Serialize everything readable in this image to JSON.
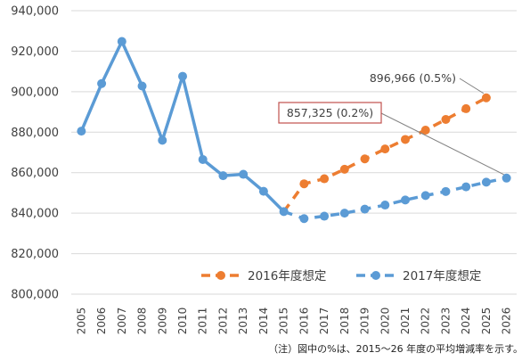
{
  "chart_data": {
    "type": "line",
    "x": [
      "2005",
      "2006",
      "2007",
      "2008",
      "2009",
      "2010",
      "2011",
      "2012",
      "2013",
      "2014",
      "2015",
      "2016",
      "2017",
      "2018",
      "2019",
      "2020",
      "2021",
      "2022",
      "2023",
      "2024",
      "2025",
      "2026"
    ],
    "ylim": [
      800000,
      940000
    ],
    "yticks": [
      800000,
      820000,
      840000,
      860000,
      880000,
      900000,
      920000,
      940000
    ],
    "ytick_labels": [
      "800,000",
      "820,000",
      "840,000",
      "860,000",
      "880,000",
      "900,000",
      "920,000",
      "940,000"
    ],
    "grid": true,
    "legend_position": "bottom-right",
    "series": [
      {
        "name": "2017年度想定",
        "color": "#5b9bd5",
        "values": [
          880500,
          904000,
          924800,
          902800,
          876000,
          907600,
          866500,
          858500,
          859200,
          850800,
          840800,
          837300,
          838500,
          840000,
          842000,
          844000,
          846500,
          848700,
          850700,
          853000,
          855300,
          857325
        ]
      },
      {
        "name": "2016年度想定",
        "color": "#ed7d31",
        "values": [
          null,
          null,
          null,
          null,
          null,
          null,
          null,
          null,
          null,
          null,
          840800,
          854500,
          857000,
          861700,
          866800,
          871700,
          876400,
          881000,
          886300,
          891600,
          896966,
          null
        ]
      }
    ],
    "annotations": [
      {
        "text": "896,966 (0.5%)",
        "series": "2016年度想定",
        "x": "2025",
        "y": 896966,
        "boxed": false
      },
      {
        "text": "857,325 (0.2%)",
        "series": "2017年度想定",
        "x": "2026",
        "y": 857325,
        "boxed": true
      }
    ]
  },
  "note": "（注）図中の%は、2015～26 年度の平均増減率を示す。"
}
